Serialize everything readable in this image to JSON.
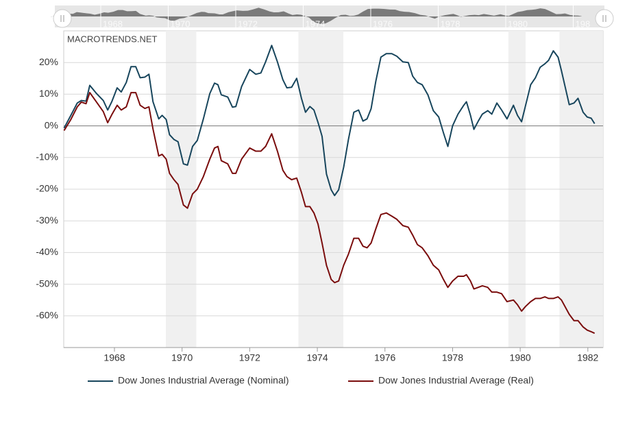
{
  "chart_data": {
    "type": "line",
    "watermark": "MACROTRENDS.NET",
    "x": [
      1966.51,
      1966.71,
      1966.9,
      1967.02,
      1967.16,
      1967.27,
      1967.47,
      1967.67,
      1967.8,
      1967.92,
      1968.08,
      1968.2,
      1968.35,
      1968.49,
      1968.63,
      1968.76,
      1968.9,
      1969.02,
      1969.14,
      1969.31,
      1969.41,
      1969.53,
      1969.63,
      1969.76,
      1969.88,
      1970.04,
      1970.16,
      1970.31,
      1970.45,
      1970.63,
      1970.82,
      1970.96,
      1971.06,
      1971.16,
      1971.35,
      1971.49,
      1971.59,
      1971.76,
      1972.0,
      1972.18,
      1972.33,
      1972.47,
      1972.65,
      1972.82,
      1972.98,
      1973.1,
      1973.24,
      1973.39,
      1973.53,
      1973.65,
      1973.78,
      1973.9,
      1974.02,
      1974.14,
      1974.27,
      1974.41,
      1974.51,
      1974.63,
      1974.78,
      1974.92,
      1975.08,
      1975.22,
      1975.35,
      1975.47,
      1975.59,
      1975.73,
      1975.88,
      1976.04,
      1976.2,
      1976.35,
      1976.53,
      1976.69,
      1976.82,
      1976.96,
      1977.1,
      1977.27,
      1977.43,
      1977.59,
      1977.73,
      1977.86,
      1978.0,
      1978.16,
      1978.33,
      1978.41,
      1978.53,
      1978.63,
      1978.76,
      1978.88,
      1979.04,
      1979.16,
      1979.31,
      1979.45,
      1979.61,
      1979.8,
      1979.92,
      1980.04,
      1980.16,
      1980.31,
      1980.45,
      1980.59,
      1980.73,
      1980.84,
      1980.98,
      1981.12,
      1981.22,
      1981.45,
      1981.59,
      1981.71,
      1981.86,
      1981.98,
      1982.1,
      1982.2
    ],
    "series": [
      {
        "name": "Dow Jones Industrial Average (Nominal)",
        "color": "#17455c",
        "values": [
          -0.7,
          3.3,
          7.2,
          8,
          7.8,
          12.8,
          10.2,
          8,
          5,
          7.6,
          12,
          10.7,
          13.7,
          18.7,
          18.7,
          15.2,
          15.4,
          16.3,
          7.6,
          2.2,
          3.3,
          2,
          -2.8,
          -4.3,
          -5,
          -12,
          -12.4,
          -6.5,
          -4.6,
          2.2,
          10.2,
          13.5,
          13,
          9.8,
          9.1,
          5.9,
          6.1,
          12.4,
          17.8,
          16.3,
          16.7,
          20.2,
          25.4,
          20.2,
          14.6,
          12,
          12.2,
          15,
          8.7,
          4.3,
          6.1,
          5,
          1.1,
          -3.3,
          -15.2,
          -20.2,
          -22,
          -20.2,
          -13,
          -4.3,
          4.3,
          5,
          1.5,
          2.2,
          5.4,
          14.1,
          21.7,
          22.8,
          22.8,
          22,
          20.2,
          20,
          15.7,
          13.7,
          13,
          9.8,
          4.8,
          2.8,
          -2.2,
          -6.5,
          0,
          3.7,
          6.5,
          7.6,
          3.3,
          -1.1,
          1.5,
          3.7,
          4.8,
          3.7,
          7.2,
          5,
          2.2,
          6.5,
          3.3,
          1.3,
          6.5,
          13,
          15.2,
          18.5,
          19.6,
          20.7,
          23.7,
          21.7,
          17.4,
          6.7,
          7.2,
          8.7,
          4.3,
          2.8,
          2.4,
          0.7
        ]
      },
      {
        "name": "Dow Jones Industrial Average (Real)",
        "color": "#7a0c0c",
        "values": [
          -1.5,
          2,
          6,
          7.5,
          7,
          10.5,
          7.5,
          4.5,
          1,
          3.5,
          6.5,
          5,
          6,
          10.5,
          10.5,
          6.5,
          5.5,
          6,
          -1,
          -9.5,
          -9,
          -10.5,
          -15,
          -17,
          -18.5,
          -25,
          -26,
          -21.5,
          -20,
          -16,
          -10.5,
          -7,
          -6.5,
          -11,
          -12,
          -15,
          -15,
          -10.5,
          -7,
          -8,
          -8,
          -6.5,
          -2.5,
          -8,
          -14,
          -16,
          -17,
          -16.5,
          -21,
          -25.5,
          -25.5,
          -27.5,
          -31,
          -37,
          -44,
          -48.5,
          -49.5,
          -49,
          -44,
          -40.5,
          -35.5,
          -35.5,
          -38,
          -38.5,
          -37,
          -32.5,
          -28,
          -27.5,
          -28.5,
          -29.5,
          -31.5,
          -32,
          -34.5,
          -37.5,
          -38.5,
          -41,
          -44,
          -45.5,
          -48.5,
          -51,
          -49,
          -47.5,
          -47.5,
          -47,
          -49,
          -51.5,
          -51,
          -50.5,
          -51,
          -52.5,
          -52.5,
          -53,
          -55.5,
          -55,
          -56.5,
          -58.5,
          -57,
          -55.5,
          -54.5,
          -54.5,
          -54,
          -54.5,
          -54.5,
          -54,
          -55,
          -59.5,
          -61.5,
          -61.5,
          -63.5,
          -64.5,
          -65,
          -65.5
        ]
      }
    ],
    "shaded_ranges": [
      [
        1969.52,
        1970.42
      ],
      [
        1973.44,
        1974.77
      ],
      [
        1979.65,
        1980.16
      ],
      [
        1981.16,
        1982.45
      ]
    ],
    "xlim": [
      1966.5,
      1982.45
    ],
    "xticks": [
      1968,
      1970,
      1972,
      1974,
      1976,
      1978,
      1980,
      1982
    ],
    "ylim": [
      -70,
      30
    ],
    "yticks": [
      {
        "value": 20,
        "label": "20%"
      },
      {
        "value": 10,
        "label": "10%"
      },
      {
        "value": 0,
        "label": "0%"
      },
      {
        "value": -10,
        "label": "-10%"
      },
      {
        "value": -20,
        "label": "-20%"
      },
      {
        "value": -30,
        "label": "-30%"
      },
      {
        "value": -40,
        "label": "-40%"
      },
      {
        "value": -50,
        "label": "-50%"
      },
      {
        "value": -60,
        "label": "-60%"
      }
    ],
    "grid": true,
    "navigator_labels": [
      "1968",
      "1970",
      "1972",
      "1974",
      "1976",
      "1978",
      "1980",
      "198"
    ]
  }
}
